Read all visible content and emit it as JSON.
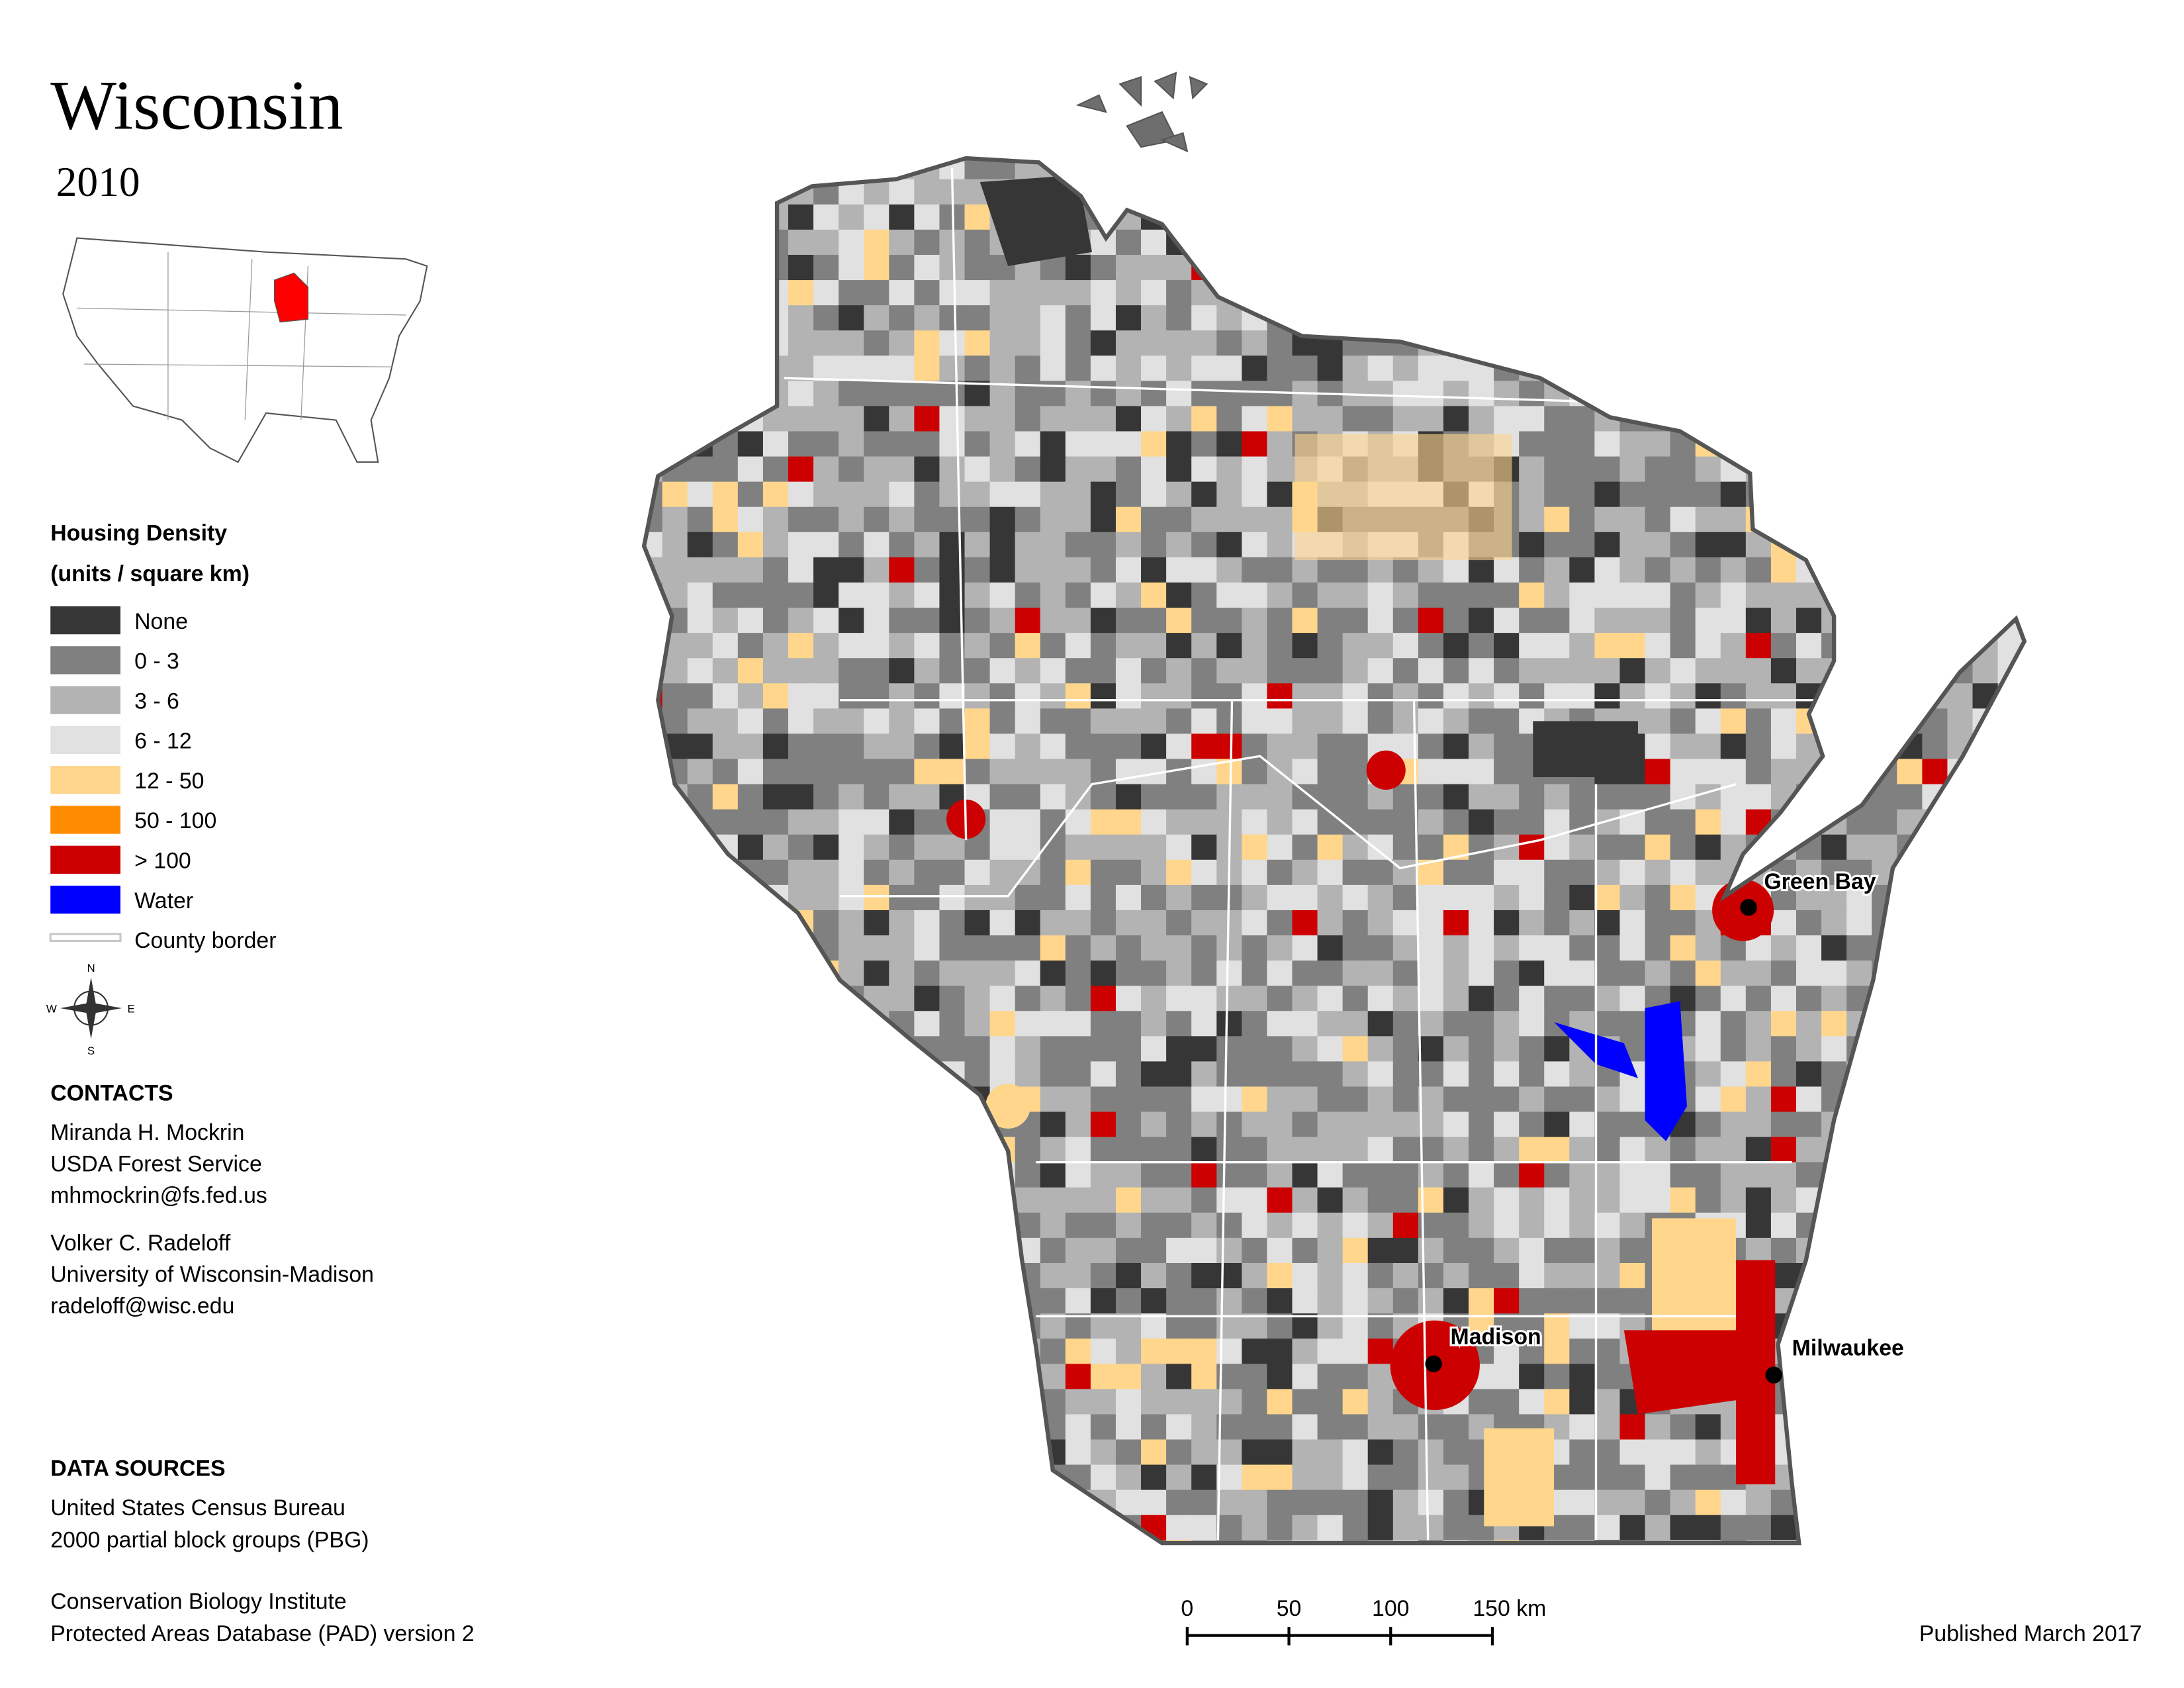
{
  "title": "Wisconsin",
  "year": "2010",
  "inset_map": {
    "highlight_color": "#ff0000"
  },
  "legend": {
    "title": "Housing Density",
    "subtitle": "(units / square km)",
    "items": [
      {
        "label": "None",
        "color": "#363636",
        "symbol": "box"
      },
      {
        "label": "0 - 3",
        "color": "#808080",
        "symbol": "box"
      },
      {
        "label": "3 - 6",
        "color": "#b3b3b3",
        "symbol": "box"
      },
      {
        "label": "6 - 12",
        "color": "#e1e1e1",
        "symbol": "box"
      },
      {
        "label": "12 - 50",
        "color": "#ffd68c",
        "symbol": "box"
      },
      {
        "label": "50 - 100",
        "color": "#ff8c00",
        "symbol": "box"
      },
      {
        "label": "> 100",
        "color": "#cc0000",
        "symbol": "box"
      },
      {
        "label": "Water",
        "color": "#0000ff",
        "symbol": "box"
      },
      {
        "label": "County border",
        "color": "#c8c8c8",
        "symbol": "line"
      }
    ]
  },
  "compass": {
    "north": "N",
    "south": "S",
    "east": "E",
    "west": "W"
  },
  "contacts": {
    "title": "CONTACTS",
    "people": [
      [
        "Miranda H. Mockrin",
        "USDA Forest Service",
        "mhmockrin@fs.fed.us"
      ],
      [
        "Volker C. Radeloff",
        "University of Wisconsin-Madison",
        "radeloff@wisc.edu"
      ]
    ]
  },
  "data_sources": {
    "title": "DATA SOURCES",
    "entries": [
      [
        "United States Census Bureau",
        "2000 partial block groups (PBG)"
      ],
      [
        "Conservation Biology Institute",
        "Protected Areas Database (PAD) version 2"
      ]
    ]
  },
  "cities": [
    "Green Bay",
    "Madison",
    "Milwaukee"
  ],
  "scale_bar": {
    "labels": [
      "0",
      "50",
      "100",
      "150 km"
    ]
  },
  "published": "Published March 2017"
}
